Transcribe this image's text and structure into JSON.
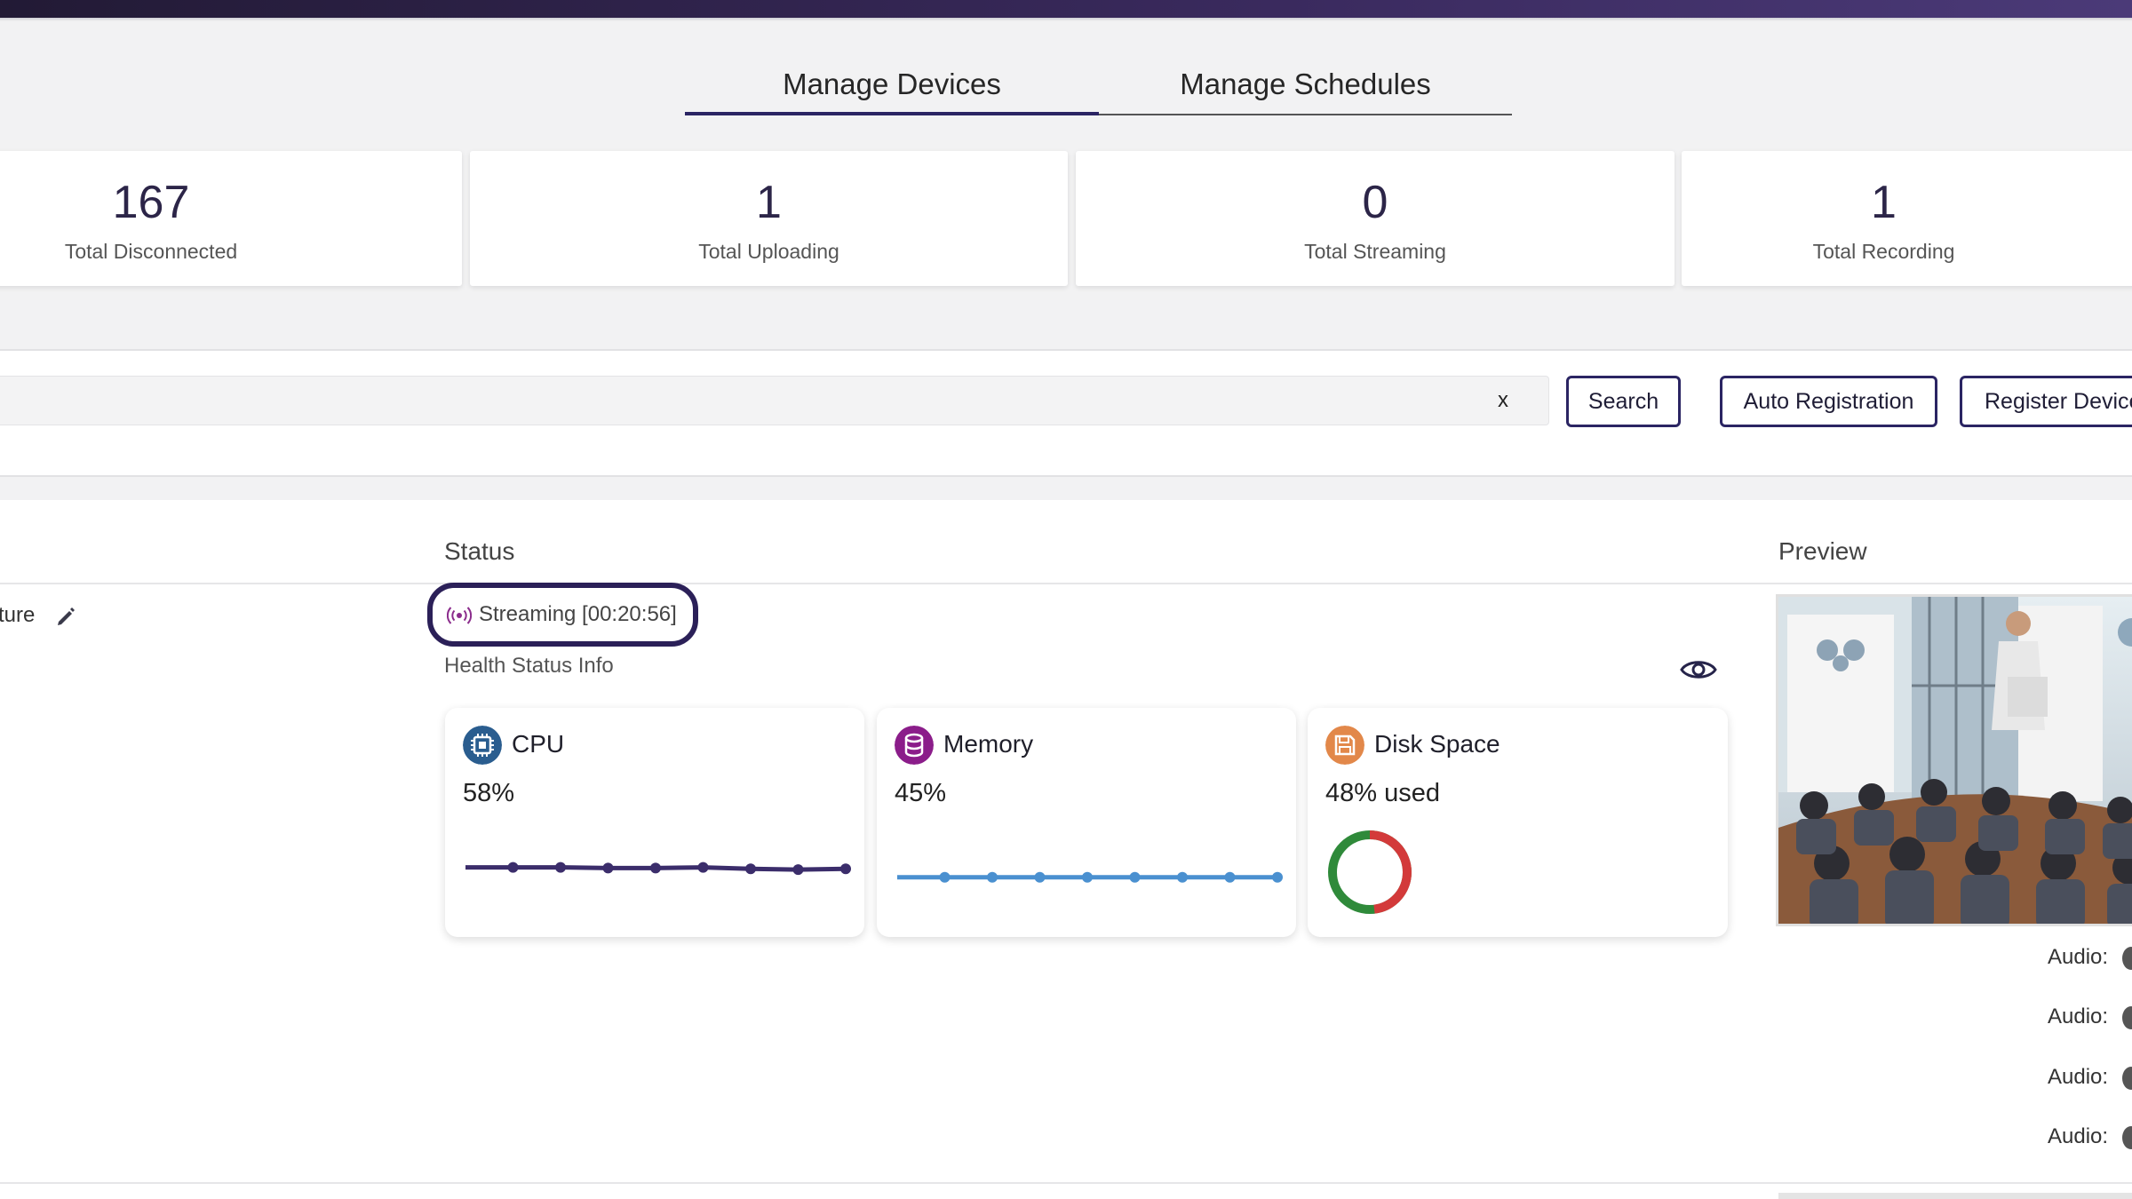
{
  "tabs": [
    {
      "label": "Manage Devices",
      "active": true
    },
    {
      "label": "Manage Schedules",
      "active": false
    }
  ],
  "stats": [
    {
      "value": "167",
      "label": "Total Disconnected"
    },
    {
      "value": "1",
      "label": "Total Uploading"
    },
    {
      "value": "0",
      "label": "Total Streaming"
    },
    {
      "value": "1",
      "label": "Total Recording"
    }
  ],
  "search": {
    "clear_label": "x",
    "search_button": "Search",
    "auto_registration_button": "Auto Registration",
    "register_device_button": "Register Device"
  },
  "table": {
    "headers": {
      "status": "Status",
      "preview": "Preview"
    },
    "row": {
      "name_fragment": "ture",
      "status_text": "Streaming [00:20:56]",
      "health_label": "Health Status Info",
      "health": {
        "cpu": {
          "title": "CPU",
          "value": "58%",
          "color": "#3b2d6b",
          "icon_color": "#2a5d8f",
          "series": [
            58,
            58,
            57,
            57,
            58,
            56,
            55,
            56
          ]
        },
        "memory": {
          "title": "Memory",
          "value": "45%",
          "color": "#4a90d0",
          "icon_color": "#8b1d8a",
          "series": [
            45,
            45,
            45,
            45,
            45,
            45,
            45,
            45
          ]
        },
        "disk": {
          "title": "Disk Space",
          "value": "48% used",
          "used_fraction": 0.48,
          "used_color": "#d33a3a",
          "free_color": "#2f8a3a",
          "icon_color": "#e2884a"
        }
      },
      "audio_labels": [
        "Audio:",
        "Audio:",
        "Audio:",
        "Audio:"
      ]
    }
  },
  "colors": {
    "accent": "#2b2563",
    "streaming_icon": "#8b2c8c"
  }
}
